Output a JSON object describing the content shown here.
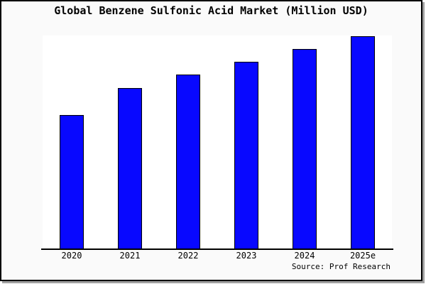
{
  "chart_data": {
    "type": "bar",
    "title": "Global Benzene Sulfonic Acid Market (Million USD)",
    "categories": [
      "2020",
      "2021",
      "2022",
      "2023",
      "2024",
      "2025e"
    ],
    "values": [
      63,
      75.5,
      82,
      88,
      94,
      100
    ],
    "values_note": "No y-axis ticks or data labels are shown in the chart; values are estimated bar heights as a percentage of the tallest (2025e) bar.",
    "xlabel": "",
    "ylabel": "",
    "ylim": [
      0,
      100
    ],
    "grid": false,
    "legend": null,
    "bar_color": "#0808ff",
    "bar_border_color": "#000000"
  },
  "footer": {
    "source_label": "Source: Prof Research"
  },
  "colors": {
    "canvas_bg": "#fafafa",
    "plot_bg": "#ffffff",
    "frame_border": "#000000",
    "shadow": "#a0a0a0",
    "text": "#000000"
  }
}
